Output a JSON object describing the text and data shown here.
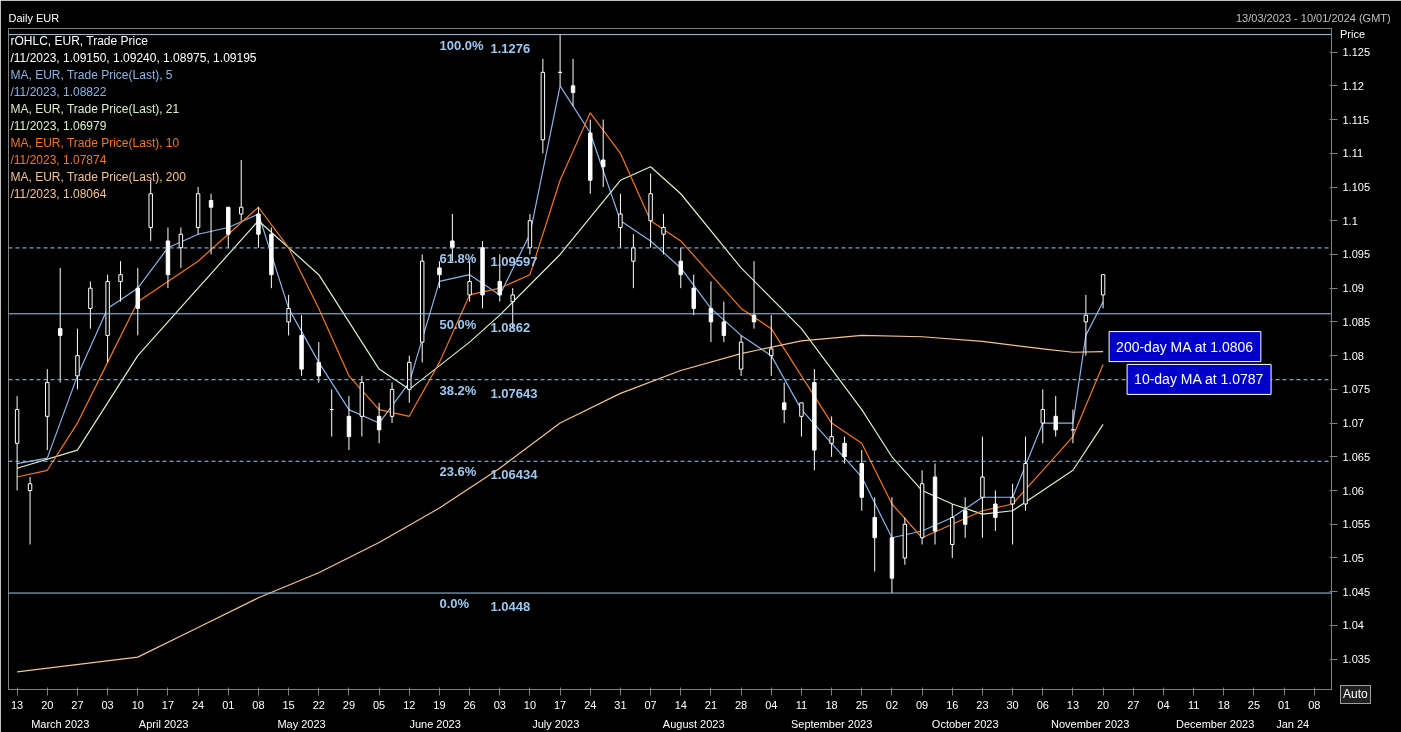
{
  "chart_data": {
    "type": "candlestick",
    "title": "Daily EUR",
    "subtitle": "13/03/2023 - 10/01/2024 (GMT)",
    "ylabel": "Price",
    "color": "#ffffff",
    "x": [
      "2023-03-13",
      "2023-03-16",
      "2023-03-20",
      "2023-03-23",
      "2023-03-27",
      "2023-03-30",
      "2023-04-03",
      "2023-04-06",
      "2023-04-10",
      "2023-04-13",
      "2023-04-17",
      "2023-04-20",
      "2023-04-24",
      "2023-04-27",
      "2023-05-01",
      "2023-05-04",
      "2023-05-08",
      "2023-05-11",
      "2023-05-15",
      "2023-05-18",
      "2023-05-22",
      "2023-05-25",
      "2023-05-29",
      "2023-06-01",
      "2023-06-05",
      "2023-06-08",
      "2023-06-12",
      "2023-06-15",
      "2023-06-19",
      "2023-06-22",
      "2023-06-26",
      "2023-06-29",
      "2023-07-03",
      "2023-07-06",
      "2023-07-10",
      "2023-07-13",
      "2023-07-17",
      "2023-07-20",
      "2023-07-24",
      "2023-07-27",
      "2023-07-31",
      "2023-08-03",
      "2023-08-07",
      "2023-08-10",
      "2023-08-14",
      "2023-08-17",
      "2023-08-21",
      "2023-08-24",
      "2023-08-28",
      "2023-08-31",
      "2023-09-04",
      "2023-09-07",
      "2023-09-11",
      "2023-09-14",
      "2023-09-18",
      "2023-09-21",
      "2023-09-25",
      "2023-09-28",
      "2023-10-02",
      "2023-10-05",
      "2023-10-09",
      "2023-10-12",
      "2023-10-16",
      "2023-10-19",
      "2023-10-23",
      "2023-10-26",
      "2023-10-30",
      "2023-11-02",
      "2023-11-06",
      "2023-11-09",
      "2023-11-13",
      "2023-11-16",
      "2023-11-20"
    ],
    "ohlc": [
      [
        1.067,
        1.074,
        1.06,
        1.072
      ],
      [
        1.06,
        1.062,
        1.052,
        1.061
      ],
      [
        1.071,
        1.078,
        1.066,
        1.076
      ],
      [
        1.084,
        1.093,
        1.076,
        1.083
      ],
      [
        1.077,
        1.084,
        1.075,
        1.08
      ],
      [
        1.087,
        1.091,
        1.084,
        1.09
      ],
      [
        1.083,
        1.092,
        1.079,
        1.091
      ],
      [
        1.091,
        1.094,
        1.088,
        1.092
      ],
      [
        1.09,
        1.093,
        1.083,
        1.087
      ],
      [
        1.099,
        1.106,
        1.097,
        1.104
      ],
      [
        1.097,
        1.099,
        1.09,
        1.092
      ],
      [
        1.096,
        1.099,
        1.093,
        1.098
      ],
      [
        1.099,
        1.105,
        1.098,
        1.104
      ],
      [
        1.103,
        1.104,
        1.095,
        1.102
      ],
      [
        1.102,
        1.102,
        1.096,
        1.098
      ],
      [
        1.101,
        1.109,
        1.1,
        1.102
      ],
      [
        1.101,
        1.102,
        1.096,
        1.098
      ],
      [
        1.098,
        1.099,
        1.09,
        1.092
      ],
      [
        1.085,
        1.089,
        1.083,
        1.087
      ],
      [
        1.083,
        1.086,
        1.077,
        1.078
      ],
      [
        1.079,
        1.082,
        1.076,
        1.077
      ],
      [
        1.072,
        1.075,
        1.068,
        1.072
      ],
      [
        1.071,
        1.074,
        1.066,
        1.068
      ],
      [
        1.071,
        1.077,
        1.068,
        1.076
      ],
      [
        1.071,
        1.073,
        1.067,
        1.069
      ],
      [
        1.071,
        1.076,
        1.07,
        1.075
      ],
      [
        1.075,
        1.08,
        1.073,
        1.079
      ],
      [
        1.082,
        1.095,
        1.079,
        1.094
      ],
      [
        1.093,
        1.094,
        1.09,
        1.092
      ],
      [
        1.097,
        1.101,
        1.094,
        1.096
      ],
      [
        1.089,
        1.094,
        1.088,
        1.091
      ],
      [
        1.096,
        1.097,
        1.087,
        1.089
      ],
      [
        1.091,
        1.095,
        1.088,
        1.089
      ],
      [
        1.088,
        1.09,
        1.084,
        1.089
      ],
      [
        1.096,
        1.101,
        1.095,
        1.1
      ],
      [
        1.112,
        1.124,
        1.11,
        1.122
      ],
      [
        1.122,
        1.1276,
        1.12,
        1.122
      ],
      [
        1.12,
        1.124,
        1.117,
        1.119
      ],
      [
        1.113,
        1.115,
        1.104,
        1.106
      ],
      [
        1.109,
        1.115,
        1.105,
        1.108
      ],
      [
        1.099,
        1.104,
        1.096,
        1.101
      ],
      [
        1.094,
        1.098,
        1.09,
        1.096
      ],
      [
        1.1,
        1.107,
        1.096,
        1.104
      ],
      [
        1.098,
        1.101,
        1.095,
        1.099
      ],
      [
        1.094,
        1.096,
        1.09,
        1.092
      ],
      [
        1.09,
        1.092,
        1.086,
        1.087
      ],
      [
        1.087,
        1.091,
        1.082,
        1.085
      ],
      [
        1.085,
        1.088,
        1.082,
        1.083
      ],
      [
        1.078,
        1.083,
        1.077,
        1.082
      ],
      [
        1.086,
        1.094,
        1.084,
        1.085
      ],
      [
        1.08,
        1.086,
        1.077,
        1.081
      ],
      [
        1.073,
        1.076,
        1.07,
        1.072
      ],
      [
        1.071,
        1.073,
        1.068,
        1.073
      ],
      [
        1.076,
        1.078,
        1.063,
        1.066
      ],
      [
        1.067,
        1.071,
        1.065,
        1.068
      ],
      [
        1.067,
        1.068,
        1.064,
        1.065
      ],
      [
        1.064,
        1.066,
        1.057,
        1.059
      ],
      [
        1.056,
        1.059,
        1.048,
        1.053
      ],
      [
        1.053,
        1.059,
        1.0448,
        1.047
      ],
      [
        1.05,
        1.056,
        1.049,
        1.055
      ],
      [
        1.053,
        1.063,
        1.052,
        1.061
      ],
      [
        1.062,
        1.064,
        1.052,
        1.054
      ],
      [
        1.052,
        1.058,
        1.05,
        1.056
      ],
      [
        1.057,
        1.059,
        1.053,
        1.055
      ],
      [
        1.059,
        1.068,
        1.053,
        1.062
      ],
      [
        1.058,
        1.06,
        1.054,
        1.056
      ],
      [
        1.058,
        1.061,
        1.052,
        1.059
      ],
      [
        1.058,
        1.068,
        1.057,
        1.064
      ],
      [
        1.07,
        1.075,
        1.067,
        1.072
      ],
      [
        1.071,
        1.074,
        1.068,
        1.069
      ],
      [
        1.069,
        1.072,
        1.067,
        1.069
      ],
      [
        1.085,
        1.089,
        1.08,
        1.086
      ],
      [
        1.089,
        1.092,
        1.087,
        1.092
      ]
    ],
    "series": [
      {
        "type": "line",
        "name": "MA, EUR, Trade Price(Last),  5",
        "color": "#8ab4e8",
        "x": [
          "2023-03-13",
          "2023-03-20",
          "2023-03-27",
          "2023-04-03",
          "2023-04-10",
          "2023-04-17",
          "2023-04-24",
          "2023-05-01",
          "2023-05-08",
          "2023-05-15",
          "2023-05-22",
          "2023-05-29",
          "2023-06-05",
          "2023-06-12",
          "2023-06-19",
          "2023-06-26",
          "2023-07-03",
          "2023-07-10",
          "2023-07-17",
          "2023-07-24",
          "2023-07-31",
          "2023-08-07",
          "2023-08-14",
          "2023-08-21",
          "2023-08-28",
          "2023-09-04",
          "2023-09-11",
          "2023-09-18",
          "2023-09-25",
          "2023-10-02",
          "2023-10-09",
          "2023-10-16",
          "2023-10-23",
          "2023-10-30",
          "2023-11-06",
          "2023-11-13",
          "2023-11-16",
          "2023-11-20"
        ],
        "values": [
          1.064,
          1.0648,
          1.077,
          1.087,
          1.09,
          1.096,
          1.098,
          1.099,
          1.101,
          1.087,
          1.079,
          1.072,
          1.07,
          1.076,
          1.091,
          1.092,
          1.089,
          1.098,
          1.12,
          1.113,
          1.1,
          1.097,
          1.093,
          1.087,
          1.083,
          1.08,
          1.072,
          1.067,
          1.062,
          1.053,
          1.054,
          1.056,
          1.059,
          1.059,
          1.07,
          1.07,
          1.083,
          1.088
        ]
      },
      {
        "type": "line",
        "name": "MA, EUR, Trade Price(Last),  21",
        "color": "#d8f0c8",
        "x": [
          "2023-03-13",
          "2023-03-27",
          "2023-04-10",
          "2023-04-24",
          "2023-05-08",
          "2023-05-22",
          "2023-06-05",
          "2023-06-12",
          "2023-06-26",
          "2023-07-03",
          "2023-07-17",
          "2023-07-31",
          "2023-08-07",
          "2023-08-14",
          "2023-08-28",
          "2023-09-11",
          "2023-09-25",
          "2023-10-02",
          "2023-10-09",
          "2023-10-16",
          "2023-10-23",
          "2023-10-30",
          "2023-11-06",
          "2023-11-13",
          "2023-11-20"
        ],
        "values": [
          1.0633,
          1.066,
          1.08,
          1.09,
          1.1,
          1.092,
          1.078,
          1.075,
          1.082,
          1.086,
          1.095,
          1.106,
          1.108,
          1.104,
          1.093,
          1.084,
          1.072,
          1.065,
          1.06,
          1.058,
          1.0565,
          1.057,
          1.06,
          1.063,
          1.0698
        ]
      },
      {
        "type": "line",
        "name": "MA, EUR, Trade Price(Last),  10",
        "color": "#f07820",
        "x": [
          "2023-03-13",
          "2023-03-20",
          "2023-03-27",
          "2023-04-03",
          "2023-04-10",
          "2023-04-24",
          "2023-05-08",
          "2023-05-15",
          "2023-05-22",
          "2023-05-29",
          "2023-06-05",
          "2023-06-12",
          "2023-06-19",
          "2023-06-26",
          "2023-07-03",
          "2023-07-10",
          "2023-07-17",
          "2023-07-24",
          "2023-07-31",
          "2023-08-07",
          "2023-08-14",
          "2023-08-28",
          "2023-09-04",
          "2023-09-11",
          "2023-09-18",
          "2023-09-25",
          "2023-10-02",
          "2023-10-09",
          "2023-10-16",
          "2023-10-23",
          "2023-10-30",
          "2023-11-06",
          "2023-11-13",
          "2023-11-20"
        ],
        "values": [
          1.062,
          1.063,
          1.07,
          1.079,
          1.088,
          1.094,
          1.102,
          1.096,
          1.087,
          1.077,
          1.072,
          1.071,
          1.079,
          1.089,
          1.09,
          1.092,
          1.106,
          1.116,
          1.11,
          1.1,
          1.097,
          1.087,
          1.084,
          1.077,
          1.07,
          1.067,
          1.058,
          1.053,
          1.055,
          1.057,
          1.058,
          1.063,
          1.068,
          1.0787
        ]
      },
      {
        "type": "line",
        "name": "MA, EUR, Trade Price(Last),  200",
        "color": "#f5c38c",
        "x": [
          "2023-03-13",
          "2023-04-10",
          "2023-04-24",
          "2023-05-08",
          "2023-05-22",
          "2023-06-05",
          "2023-06-19",
          "2023-07-03",
          "2023-07-17",
          "2023-07-31",
          "2023-08-14",
          "2023-08-28",
          "2023-09-11",
          "2023-09-25",
          "2023-10-09",
          "2023-10-23",
          "2023-11-06",
          "2023-11-13",
          "2023-11-20"
        ],
        "values": [
          1.0331,
          1.0353,
          1.0397,
          1.0441,
          1.0478,
          1.0523,
          1.0574,
          1.0633,
          1.07,
          1.0744,
          1.0778,
          1.0803,
          1.0822,
          1.083,
          1.0828,
          1.0821,
          1.081,
          1.0805,
          1.0806
        ]
      }
    ],
    "legend": "top left",
    "line_style": "solid",
    "marker": "none",
    "grid": false,
    "ylim": [
      1.0305,
      1.1285
    ],
    "yticks": [
      1.035,
      1.04,
      1.045,
      1.05,
      1.055,
      1.06,
      1.065,
      1.07,
      1.075,
      1.08,
      1.085,
      1.09,
      1.095,
      1.1,
      1.105,
      1.11,
      1.115,
      1.12,
      1.125
    ],
    "xlim": [
      "2023-03-11",
      "2024-01-12"
    ],
    "xticks": [
      {
        "value": "2023-03-13",
        "label": "13"
      },
      {
        "value": "2023-03-20",
        "label": "20"
      },
      {
        "value": "2023-03-27",
        "label": "27"
      },
      {
        "value": "2023-04-03",
        "label": "03"
      },
      {
        "value": "2023-04-10",
        "label": "10"
      },
      {
        "value": "2023-04-17",
        "label": "17"
      },
      {
        "value": "2023-04-24",
        "label": "24"
      },
      {
        "value": "2023-05-01",
        "label": "01"
      },
      {
        "value": "2023-05-08",
        "label": "08"
      },
      {
        "value": "2023-05-15",
        "label": "15"
      },
      {
        "value": "2023-05-22",
        "label": "22"
      },
      {
        "value": "2023-05-29",
        "label": "29"
      },
      {
        "value": "2023-06-05",
        "label": "05"
      },
      {
        "value": "2023-06-12",
        "label": "12"
      },
      {
        "value": "2023-06-19",
        "label": "19"
      },
      {
        "value": "2023-06-26",
        "label": "26"
      },
      {
        "value": "2023-07-03",
        "label": "03"
      },
      {
        "value": "2023-07-10",
        "label": "10"
      },
      {
        "value": "2023-07-17",
        "label": "17"
      },
      {
        "value": "2023-07-24",
        "label": "24"
      },
      {
        "value": "2023-07-31",
        "label": "31"
      },
      {
        "value": "2023-08-07",
        "label": "07"
      },
      {
        "value": "2023-08-14",
        "label": "14"
      },
      {
        "value": "2023-08-21",
        "label": "21"
      },
      {
        "value": "2023-08-28",
        "label": "28"
      },
      {
        "value": "2023-09-04",
        "label": "04"
      },
      {
        "value": "2023-09-11",
        "label": "11"
      },
      {
        "value": "2023-09-18",
        "label": "18"
      },
      {
        "value": "2023-09-25",
        "label": "25"
      },
      {
        "value": "2023-10-02",
        "label": "02"
      },
      {
        "value": "2023-10-09",
        "label": "09"
      },
      {
        "value": "2023-10-16",
        "label": "16"
      },
      {
        "value": "2023-10-23",
        "label": "23"
      },
      {
        "value": "2023-10-30",
        "label": "30"
      },
      {
        "value": "2023-11-06",
        "label": "06"
      },
      {
        "value": "2023-11-13",
        "label": "13"
      },
      {
        "value": "2023-11-20",
        "label": "20"
      },
      {
        "value": "2023-11-27",
        "label": "27"
      },
      {
        "value": "2023-12-04",
        "label": "04"
      },
      {
        "value": "2023-12-11",
        "label": "11"
      },
      {
        "value": "2023-12-18",
        "label": "18"
      },
      {
        "value": "2023-12-25",
        "label": "25"
      },
      {
        "value": "2024-01-01",
        "label": "01"
      },
      {
        "value": "2024-01-08",
        "label": "08"
      }
    ],
    "x2ticks": [
      {
        "value": "2023-03-23",
        "label": "March 2023"
      },
      {
        "value": "2023-04-16",
        "label": "April 2023"
      },
      {
        "value": "2023-05-18",
        "label": "May 2023"
      },
      {
        "value": "2023-06-18",
        "label": "June 2023"
      },
      {
        "value": "2023-07-16",
        "label": "July 2023"
      },
      {
        "value": "2023-08-17",
        "label": "August 2023"
      },
      {
        "value": "2023-09-18",
        "label": "September 2023"
      },
      {
        "value": "2023-10-19",
        "label": "October 2023"
      },
      {
        "value": "2023-11-17",
        "label": "November 2023"
      },
      {
        "value": "2023-12-16",
        "label": "December 2023"
      },
      {
        "value": "2024-01-03",
        "label": "Jan 24"
      }
    ],
    "ref_lines": [
      {
        "axis": "y",
        "value": 1.1276,
        "label": "1.1276",
        "color": "#9cc8f0",
        "line_style": "solid"
      },
      {
        "axis": "y",
        "value": 1.09597,
        "label": "1.09597",
        "color": "#9cc8f0",
        "line_style": "dashed"
      },
      {
        "axis": "y",
        "value": 1.0862,
        "label": "1.0862",
        "color": "#9cc8f0",
        "line_style": "solid"
      },
      {
        "axis": "y",
        "value": 1.07643,
        "label": "1.07643",
        "color": "#9cc8f0",
        "line_style": "dashed"
      },
      {
        "axis": "y",
        "value": 1.06434,
        "label": "1.06434",
        "color": "#9cc8f0",
        "line_style": "dashed"
      },
      {
        "axis": "y",
        "value": 1.0448,
        "label": "1.0448",
        "color": "#9cc8f0",
        "line_style": "solid"
      }
    ],
    "x2lim": [
      "2023-03-11",
      "2024-01-12"
    ],
    "annotations": [
      "rOHLC, EUR, Trade Price",
      "/11/2023, 1.09150, 1.09240, 1.08975, 1.09195",
      "/11/2023, 1.08822",
      "/11/2023, 1.06979",
      "/11/2023, 1.07874",
      "/11/2023, 1.08064",
      "Auto",
      {
        "text": "100.0%",
        "x": "2023-06-19",
        "y": 1.1276
      },
      {
        "text": "61.8%",
        "x": "2023-06-19",
        "y": 1.09597
      },
      {
        "text": "50.0%",
        "x": "2023-06-19",
        "y": 1.0862
      },
      {
        "text": "38.2%",
        "x": "2023-06-19",
        "y": 1.07643
      },
      {
        "text": "23.6%",
        "x": "2023-06-19",
        "y": 1.06434
      },
      {
        "text": "0.0%",
        "x": "2023-06-19",
        "y": 1.0448
      },
      {
        "text": "200-day MA at 1.0806",
        "x": "2023-11-20",
        "y": 1.0806
      },
      {
        "text": "10-day MA at 1.0787",
        "x": "2023-11-20",
        "y": 1.0787
      }
    ]
  }
}
